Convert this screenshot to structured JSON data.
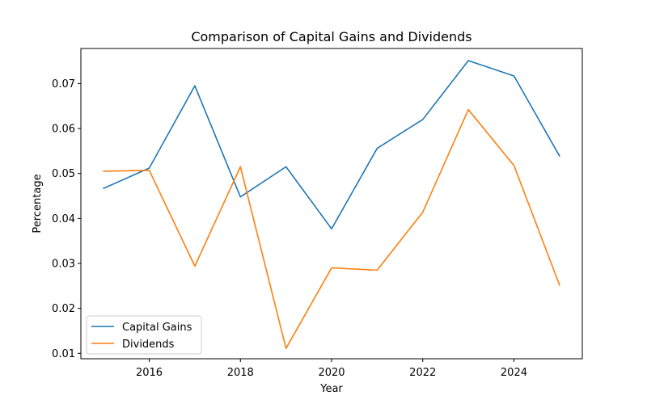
{
  "chart_data": {
    "type": "line",
    "title": "Comparison of Capital Gains and Dividends",
    "xlabel": "Year",
    "ylabel": "Percentage",
    "x": [
      2015,
      2016,
      2017,
      2018,
      2019,
      2020,
      2021,
      2022,
      2023,
      2024,
      2025
    ],
    "xlim": [
      2014.5,
      2025.5
    ],
    "ylim": [
      0.0088,
      0.0778
    ],
    "x_ticks": [
      2016,
      2018,
      2020,
      2022,
      2024
    ],
    "y_ticks": [
      0.01,
      0.02,
      0.03,
      0.04,
      0.05,
      0.06,
      0.07
    ],
    "x_tick_labels": [
      "2016",
      "2018",
      "2020",
      "2022",
      "2024"
    ],
    "y_tick_labels": [
      "0.01",
      "0.02",
      "0.03",
      "0.04",
      "0.05",
      "0.06",
      "0.07"
    ],
    "grid": false,
    "legend_position": "lower-left",
    "series": [
      {
        "name": "Capital Gains",
        "color": "#1f77b4",
        "values": [
          0.0467,
          0.0512,
          0.0695,
          0.0448,
          0.0515,
          0.0377,
          0.0556,
          0.062,
          0.0751,
          0.0717,
          0.0539
        ]
      },
      {
        "name": "Dividends",
        "color": "#ff7f0e",
        "values": [
          0.0505,
          0.0507,
          0.0294,
          0.0515,
          0.0111,
          0.029,
          0.0285,
          0.0414,
          0.0642,
          0.0518,
          0.0252
        ]
      }
    ]
  }
}
